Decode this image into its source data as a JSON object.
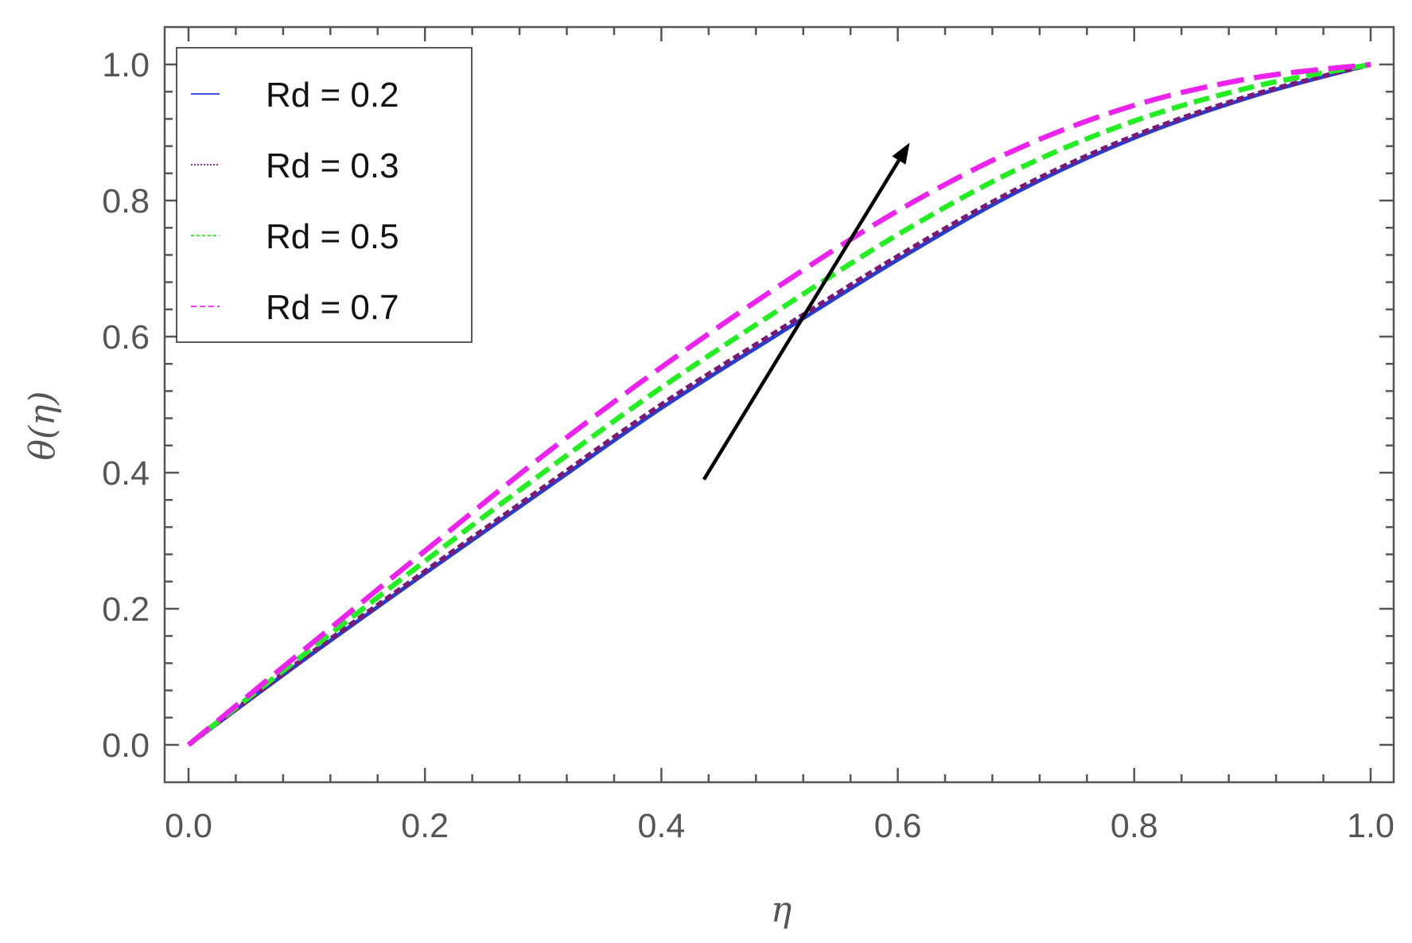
{
  "chart_data": {
    "type": "line",
    "xlabel": "η",
    "ylabel": "θ(η)",
    "xlim": [
      0,
      1
    ],
    "ylim": [
      -0.055,
      1.055
    ],
    "x_ticks": [
      "0.0",
      "0.2",
      "0.4",
      "0.6",
      "0.8",
      "1.0"
    ],
    "y_ticks": [
      "0.0",
      "0.2",
      "0.4",
      "0.6",
      "0.8",
      "1.0"
    ],
    "grid": false,
    "legend_position": "top-left",
    "x": [
      0,
      0.1,
      0.2,
      0.3,
      0.4,
      0.5,
      0.6,
      0.7,
      0.8,
      0.9,
      1.0
    ],
    "series": [
      {
        "name": "Rd = 0.2",
        "color": "#1f3fd6",
        "style": "solid",
        "values": [
          0,
          0.128,
          0.252,
          0.374,
          0.495,
          0.605,
          0.713,
          0.812,
          0.892,
          0.953,
          1.0
        ]
      },
      {
        "name": "Rd = 0.3",
        "color": "#7a1a78",
        "style": "dashed-fine",
        "values": [
          0,
          0.13,
          0.255,
          0.378,
          0.5,
          0.61,
          0.718,
          0.816,
          0.895,
          0.955,
          1.0
        ]
      },
      {
        "name": "Rd = 0.5",
        "color": "#22ee22",
        "style": "dashed",
        "values": [
          0,
          0.136,
          0.27,
          0.4,
          0.525,
          0.64,
          0.75,
          0.845,
          0.917,
          0.967,
          1.0
        ]
      },
      {
        "name": "Rd = 0.7",
        "color": "#ee22ee",
        "style": "dashed-long",
        "values": [
          0,
          0.143,
          0.285,
          0.425,
          0.555,
          0.675,
          0.785,
          0.875,
          0.94,
          0.98,
          1.0
        ]
      }
    ],
    "annotations": [
      {
        "type": "arrow",
        "from": [
          0.436,
          0.39
        ],
        "to": [
          0.61,
          0.885
        ],
        "color": "#000000"
      }
    ]
  }
}
